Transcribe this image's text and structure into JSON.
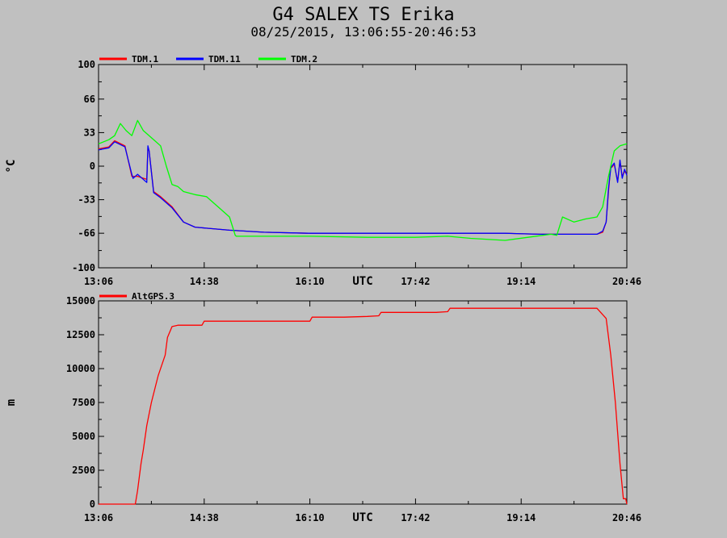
{
  "title": "G4 SALEX TS Erika",
  "subtitle": "08/25/2015, 13:06:55-20:46:53",
  "chart_data": [
    {
      "type": "line",
      "ylabel": "°C",
      "xlabel": "UTC",
      "ylim": [
        -100,
        100
      ],
      "yticks": [
        "100",
        "66",
        "33",
        "0",
        "-33",
        "-66",
        "-100"
      ],
      "xlim": [
        "13:06",
        "20:46"
      ],
      "xticks": [
        "13:06",
        "14:38",
        "16:10",
        "17:42",
        "19:14",
        "20:46"
      ],
      "grid": false,
      "legend_position": "top-left",
      "series": [
        {
          "name": "TDM.1",
          "color": "#ff0000",
          "x": [
            "13:06",
            "13:15",
            "13:20",
            "13:29",
            "13:35",
            "13:36",
            "13:40",
            "13:48",
            "13:49",
            "13:50",
            "13:54",
            "14:00",
            "14:10",
            "14:20",
            "14:30",
            "15:00",
            "15:30",
            "16:10",
            "17:00",
            "18:00",
            "19:00",
            "19:30",
            "20:00",
            "20:20",
            "20:25",
            "20:28",
            "20:30",
            "20:32",
            "20:33",
            "20:35",
            "20:38",
            "20:40",
            "20:42",
            "20:44",
            "20:46"
          ],
          "y": [
            17,
            19,
            25,
            20,
            -10,
            -10,
            -10,
            -13,
            18,
            15,
            -25,
            -30,
            -40,
            -55,
            -60,
            -63,
            -65,
            -66,
            -66,
            -66,
            -66,
            -67,
            -67,
            -67,
            -65,
            -55,
            -25,
            0,
            -1,
            2,
            -15,
            5,
            -10,
            -5,
            -8
          ]
        },
        {
          "name": "TDM.11",
          "color": "#0000ff",
          "x": [
            "13:06",
            "13:15",
            "13:20",
            "13:29",
            "13:35",
            "13:36",
            "13:40",
            "13:48",
            "13:49",
            "13:50",
            "13:54",
            "14:00",
            "14:10",
            "14:20",
            "14:30",
            "15:00",
            "15:30",
            "16:10",
            "17:00",
            "18:00",
            "19:00",
            "19:30",
            "20:00",
            "20:20",
            "20:25",
            "20:28",
            "20:30",
            "20:32",
            "20:33",
            "20:35",
            "20:38",
            "20:40",
            "20:42",
            "20:44",
            "20:46"
          ],
          "y": [
            16,
            18,
            24,
            19,
            -8,
            -12,
            -8,
            -16,
            20,
            15,
            -26,
            -31,
            -41,
            -55,
            -60,
            -63,
            -65,
            -66,
            -66,
            -66,
            -66,
            -67,
            -67,
            -67,
            -64,
            -55,
            -22,
            -2,
            0,
            3,
            -16,
            6,
            -12,
            -3,
            -9
          ]
        },
        {
          "name": "TDM.2",
          "color": "#00ff00",
          "x": [
            "13:06",
            "13:15",
            "13:20",
            "13:25",
            "13:30",
            "13:35",
            "13:40",
            "13:45",
            "13:50",
            "13:55",
            "14:00",
            "14:05",
            "14:10",
            "14:15",
            "14:20",
            "14:30",
            "14:40",
            "14:50",
            "15:00",
            "15:05",
            "15:06",
            "15:10",
            "15:30",
            "16:10",
            "17:00",
            "17:42",
            "18:10",
            "18:30",
            "19:00",
            "19:20",
            "19:40",
            "19:45",
            "19:50",
            "20:00",
            "20:10",
            "20:20",
            "20:25",
            "20:30",
            "20:35",
            "20:40",
            "20:46"
          ],
          "y": [
            22,
            26,
            30,
            42,
            35,
            30,
            45,
            35,
            30,
            25,
            20,
            0,
            -18,
            -20,
            -25,
            -28,
            -30,
            -40,
            -50,
            -68,
            -69,
            -69,
            -69,
            -69,
            -70,
            -70,
            -69,
            -71,
            -73,
            -70,
            -67,
            -68,
            -50,
            -55,
            -52,
            -50,
            -40,
            -10,
            15,
            20,
            22
          ]
        }
      ]
    },
    {
      "type": "line",
      "ylabel": "m",
      "xlabel": "UTC",
      "ylim": [
        0,
        15000
      ],
      "yticks": [
        "15000",
        "12500",
        "10000",
        "7500",
        "5000",
        "2500",
        "0"
      ],
      "xlim": [
        "13:06",
        "20:46"
      ],
      "xticks": [
        "13:06",
        "14:38",
        "16:10",
        "17:42",
        "19:14",
        "20:46"
      ],
      "grid": false,
      "legend_position": "top-left",
      "series": [
        {
          "name": "AltGPS.3",
          "color": "#ff0000",
          "x": [
            "13:06",
            "13:38",
            "13:40",
            "13:43",
            "13:45",
            "13:48",
            "13:52",
            "13:58",
            "14:04",
            "14:06",
            "14:10",
            "14:15",
            "14:20",
            "14:36",
            "14:38",
            "15:00",
            "15:30",
            "16:10",
            "16:12",
            "16:40",
            "17:00",
            "17:10",
            "17:12",
            "17:40",
            "18:00",
            "18:10",
            "18:12",
            "18:30",
            "19:00",
            "19:30",
            "19:40",
            "19:44",
            "19:48",
            "20:00",
            "20:10",
            "20:15",
            "20:20",
            "20:28",
            "20:32",
            "20:36",
            "20:40",
            "20:43",
            "20:45",
            "20:46"
          ],
          "y": [
            0,
            0,
            1000,
            3000,
            4000,
            5800,
            7500,
            9500,
            11000,
            12300,
            13100,
            13200,
            13200,
            13200,
            13500,
            13500,
            13500,
            13500,
            13800,
            13800,
            13850,
            13900,
            14150,
            14150,
            14150,
            14200,
            14450,
            14450,
            14450,
            14450,
            14450,
            14450,
            14450,
            14450,
            14450,
            14450,
            14450,
            13700,
            11000,
            7500,
            3000,
            400,
            400,
            0
          ]
        }
      ]
    }
  ]
}
